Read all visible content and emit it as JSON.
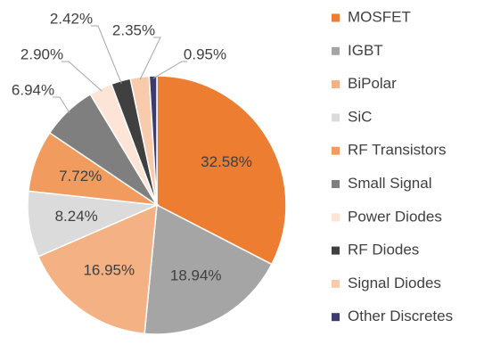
{
  "chart_data": {
    "type": "pie",
    "categories": [
      "MOSFET",
      "IGBT",
      "BiPolar",
      "SiC",
      "RF Transistors",
      "Small Signal",
      "Power Diodes",
      "RF Diodes",
      "Signal Diodes",
      "Other Discretes"
    ],
    "values": [
      32.58,
      18.94,
      16.95,
      8.24,
      7.72,
      6.94,
      2.9,
      2.42,
      2.35,
      0.95
    ],
    "value_labels": [
      "32.58%",
      "18.94%",
      "16.95%",
      "8.24%",
      "7.72%",
      "6.94%",
      "2.90%",
      "2.42%",
      "2.35%",
      "0.95%"
    ],
    "colors": [
      "#ed7d31",
      "#a5a5a5",
      "#f4b183",
      "#dbdbdb",
      "#f19c5e",
      "#7f7f7f",
      "#fce4d6",
      "#404040",
      "#f8cbad",
      "#3d3a6e"
    ],
    "legend": "right"
  }
}
